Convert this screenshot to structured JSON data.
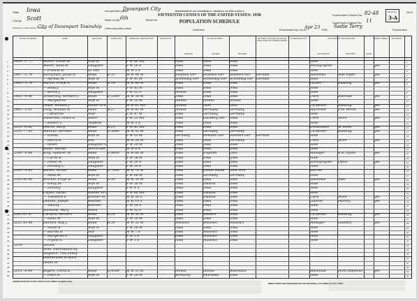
{
  "header": {
    "state_label": "State",
    "state": "Iowa",
    "county_label": "County",
    "county": "Scott",
    "township_label": "Township or other division of county",
    "township": "City of Davenport Township",
    "incorporated_label": "Incorporated place",
    "incorporated": "Davenport City",
    "ward_label": "Ward of city",
    "ward": "6th",
    "block_label": "Block No.",
    "unincorporated_label": "Unincorporated place",
    "institution_label": "Institution",
    "department": "DEPARTMENT OF COMMERCE—BUREAU OF THE CENSUS",
    "census_title": "FIFTEENTH CENSUS OF THE UNITED STATES: 1930",
    "schedule_title": "POPULATION SCHEDULE",
    "ed_label": "Enumeration District No.",
    "ed": "82-48",
    "supervisor_label": "Supervisor's District No.",
    "supervisor": "11",
    "enumerated_label": "Enumerated by me on",
    "enumerated_date": "Apr 23",
    "year": "1930",
    "enumerator": "Sadie Terry",
    "enumerator_label": "Enumerator",
    "sheet_label": "Sheet No.",
    "sheet": "3-A",
    "stamp": "2413"
  },
  "columns": [
    "PLACE OF ABODE",
    "NAME",
    "RELATION",
    "HOME DATA",
    "PERSONAL DESCRIPTION",
    "EDUCATION",
    "PLACE OF BIRTH",
    "MOTHER TONGUE (OR NATIVE LANGUAGE) OF FOREIGN BORN",
    "CITIZENSHIP, ETC.",
    "OCCUPATION AND INDUSTRY",
    "EMPLOYMENT",
    "VETERANS"
  ],
  "birth_subheaders": [
    "PERSON",
    "FATHER",
    "MOTHER"
  ],
  "occupation_subheaders": [
    "OCCUPATION",
    "INDUSTRY",
    "CODE"
  ],
  "rows": [
    {
      "abode": "2409 71 77",
      "name": "Moore, Lottie M.",
      "rel": "Wife H",
      "home": "",
      "desc": "F W 48 Wd",
      "birth": "Iowa",
      "father": "Iowa",
      "mother": "Iowa",
      "tongue": "",
      "occ": "none",
      "ind": "",
      "emp": ""
    },
    {
      "abode": "",
      "name": "Moore, Edna B.",
      "rel": "Daughter",
      "home": "",
      "desc": "F W 26 S",
      "birth": "Iowa",
      "father": "Iowa",
      "mother": "Iowa",
      "tongue": "",
      "occ": "Stenographer",
      "ind": "",
      "emp": "yes"
    },
    {
      "abode": "",
      "name": "— Francis W.",
      "rel": "Gr Son",
      "home": "",
      "desc": "M W 5 S",
      "birth": "Iowa",
      "father": "Iowa",
      "mother": "Iowa",
      "tongue": "",
      "occ": "none",
      "ind": "",
      "emp": ""
    },
    {
      "abode": "2407 72 78",
      "name": "Hardyman, Julius H.",
      "rel": "Head",
      "home": "R 15",
      "desc": "M W 44 M",
      "birth": "Holstein Ger",
      "father": "Holstein Ger",
      "mother": "Holstein Ger",
      "tongue": "German",
      "occ": "Salesman",
      "ind": "Wall Paper",
      "emp": "yes"
    },
    {
      "abode": "",
      "name": "— Alfreda M.",
      "rel": "Wife H",
      "home": "",
      "desc": "F W 41 M",
      "birth": "Schleswig Ger",
      "father": "Schleswig Ger",
      "mother": "Schleswig Ger",
      "tongue": "German",
      "occ": "none",
      "ind": "",
      "emp": ""
    },
    {
      "abode": "2405 73 79",
      "name": "Martin, Frank A.",
      "rel": "Head",
      "home": "R 14",
      "desc": "M W 48 M",
      "birth": "Iowa",
      "father": "Iowa",
      "mother": "Iowa",
      "tongue": "",
      "occ": "Painter",
      "ind": "Building",
      "emp": "yes"
    },
    {
      "abode": "",
      "name": "— Edna J.",
      "rel": "Wife H",
      "home": "",
      "desc": "F W 45 M",
      "birth": "Iowa",
      "father": "Iowa",
      "mother": "Iowa",
      "tongue": "",
      "occ": "none",
      "ind": "",
      "emp": ""
    },
    {
      "abode": "",
      "name": "— Bertie J.",
      "rel": "Daughter",
      "home": "",
      "desc": "F W 12 S",
      "birth": "Illinois",
      "father": "Iowa",
      "mother": "Iowa",
      "tongue": "",
      "occ": "none",
      "ind": "",
      "emp": ""
    },
    {
      "abode": "2403 74 80",
      "name": "Armstrong, Herbert C.",
      "rel": "Head",
      "home": "O 2500",
      "desc": "M W 38 M",
      "birth": "Iowa",
      "father": "Iowa",
      "mother": "Iowa",
      "tongue": "",
      "occ": "Clerk",
      "ind": "Railroad",
      "emp": "yes"
    },
    {
      "abode": "",
      "name": "— Marguerite",
      "rel": "Wife H",
      "home": "",
      "desc": "F W 35 M",
      "birth": "Illinois",
      "father": "Illinois",
      "mother": "Illinois",
      "tongue": "",
      "occ": "none",
      "ind": "",
      "emp": ""
    },
    {
      "abode": "",
      "name": "Pease, William J.",
      "rel": "Father-in-law",
      "home": "",
      "desc": "M W 61 Wd",
      "birth": "Illinois",
      "father": "Ohio",
      "mother": "Ohio",
      "tongue": "",
      "occ": "Carpenter",
      "ind": "Building",
      "emp": "yes"
    },
    {
      "abode": "2401 75 81",
      "name": "Long, William W.",
      "rel": "Head",
      "home": "R 27",
      "desc": "M W 45 M",
      "birth": "Illinois",
      "father": "Germany",
      "mother": "Germany",
      "tongue": "",
      "occ": "Machinist",
      "ind": "Iron Works",
      "emp": "yes"
    },
    {
      "abode": "",
      "name": "— Catherine",
      "rel": "Wife",
      "home": "",
      "desc": "F W 47 M",
      "birth": "Iowa",
      "father": "Germany",
      "mother": "Germany",
      "tongue": "",
      "occ": "none",
      "ind": "",
      "emp": ""
    },
    {
      "abode": "",
      "name": "Fulkerson, Grace E.",
      "rel": "Sister",
      "home": "",
      "desc": "F W 25 Wd",
      "birth": "Iowa",
      "father": "Lutzberg Ger",
      "mother": "Iowa",
      "tongue": "",
      "occ": "Clerk",
      "ind": "Store",
      "emp": "yes"
    },
    {
      "abode": "",
      "name": "— Robert C.",
      "rel": "Nephew",
      "home": "",
      "desc": "M W 5 S",
      "birth": "Iowa",
      "father": "Iowa",
      "mother": "Iowa",
      "tongue": "",
      "occ": "none",
      "ind": "",
      "emp": ""
    },
    {
      "abode": "2315 76 82",
      "name": "Pearce, Mary",
      "rel": "Head",
      "home": "R 25",
      "desc": "F W 42 Wd",
      "birth": "Iowa",
      "father": "Iowa",
      "mother": "Iowa",
      "tongue": "",
      "occ": "Dressmaker",
      "ind": "At home",
      "emp": "yes"
    },
    {
      "abode": "2311 77 83",
      "name": "Mathias, Herman",
      "rel": "Head",
      "home": "O 5000",
      "desc": "M W 52 M",
      "birth": "Iowa",
      "father": "Germany",
      "mother": "Germany",
      "tongue": "",
      "occ": "Carpenter",
      "ind": "Building",
      "emp": "yes"
    },
    {
      "abode": "",
      "name": "— Emma",
      "rel": "Wife H",
      "home": "",
      "desc": "F W 53 M",
      "birth": "Germany",
      "father": "Holstein Ger",
      "mother": "Holstein Ger",
      "tongue": "German",
      "occ": "none",
      "ind": "",
      "emp": ""
    },
    {
      "abode": "",
      "name": "— Harry H.",
      "rel": "Son",
      "home": "",
      "desc": "M W 24 M",
      "birth": "Iowa",
      "father": "Iowa",
      "mother": "Germany",
      "tongue": "",
      "occ": "Clerk",
      "ind": "Store",
      "emp": "yes"
    },
    {
      "abode": "",
      "name": "— Helen",
      "rel": "Daughter-in-law",
      "home": "",
      "desc": "F W 20 M",
      "birth": "Iowa",
      "father": "Iowa",
      "mother": "Iowa",
      "tongue": "",
      "occ": "none",
      "ind": "",
      "emp": ""
    },
    {
      "abode": "",
      "name": "Roald, Harold",
      "rel": "Son-in-law",
      "home": "",
      "desc": "M W 8 S",
      "birth": "Iowa",
      "father": "Iowa",
      "mother": "Iowa",
      "tongue": "",
      "occ": "none",
      "ind": "",
      "emp": ""
    },
    {
      "abode": "2309 78 84",
      "name": "King, Spencer M.",
      "rel": "Head",
      "home": "O 8000",
      "desc": "M W 66 M",
      "birth": "Iowa",
      "father": "England",
      "mother": "Ohio",
      "tongue": "",
      "occ": "Manager",
      "ind": "R.R. Office",
      "emp": "yes"
    },
    {
      "abode": "",
      "name": "— Carrie E.",
      "rel": "Wife H",
      "home": "",
      "desc": "F W 58 M",
      "birth": "Iowa",
      "father": "Iowa",
      "mother": "Iowa",
      "tongue": "",
      "occ": "none",
      "ind": "",
      "emp": ""
    },
    {
      "abode": "",
      "name": "— Nellie M.",
      "rel": "Daughter",
      "home": "",
      "desc": "F W 29 S",
      "birth": "Iowa",
      "father": "Iowa",
      "mother": "Iowa",
      "tongue": "",
      "occ": "Stenographer",
      "ind": "Office",
      "emp": "yes"
    },
    {
      "abode": "",
      "name": "— Dorothy L.",
      "rel": "Daughter",
      "home": "",
      "desc": "F W 20 S",
      "birth": "Iowa",
      "father": "Iowa",
      "mother": "Iowa",
      "tongue": "",
      "occ": "none",
      "ind": "",
      "emp": ""
    },
    {
      "abode": "2305 79 85",
      "name": "Barber, Arthur",
      "rel": "Head",
      "home": "O 7000",
      "desc": "M W 70 M",
      "birth": "Iowa",
      "father": "Rhode Island",
      "mother": "New York",
      "tongue": "",
      "occ": "Retired",
      "ind": "",
      "emp": ""
    },
    {
      "abode": "",
      "name": "— Anna M.",
      "rel": "Wife H",
      "home": "",
      "desc": "F W 66 M",
      "birth": "Iowa",
      "father": "Germany",
      "mother": "Germany",
      "tongue": "",
      "occ": "none",
      "ind": "",
      "emp": ""
    },
    {
      "abode": "2303 80 86",
      "name": "Brocker, Floyd B.",
      "rel": "Head",
      "home": "R 50",
      "desc": "M W 30 M",
      "birth": "Iowa",
      "father": "Iowa",
      "mother": "Iowa",
      "tongue": "",
      "occ": "Salesman",
      "ind": "Auto",
      "emp": "yes"
    },
    {
      "abode": "",
      "name": "— Emily M.",
      "rel": "Wife H",
      "home": "",
      "desc": "F W 28 M",
      "birth": "Iowa",
      "father": "Indiana",
      "mother": "Iowa",
      "tongue": "",
      "occ": "none",
      "ind": "",
      "emp": ""
    },
    {
      "abode": "",
      "name": "— Dorothy",
      "rel": "Daughter",
      "home": "",
      "desc": "F W 4 S",
      "birth": "Iowa",
      "father": "Iowa",
      "mother": "Iowa",
      "tongue": "",
      "occ": "none",
      "ind": "",
      "emp": ""
    },
    {
      "abode": "",
      "name": "Coffelt, Sarah",
      "rel": "Mother-in-law",
      "home": "",
      "desc": "F W 60 Wd",
      "birth": "Iowa",
      "father": "Indiana",
      "mother": "Iowa",
      "tongue": "",
      "occ": "none",
      "ind": "",
      "emp": ""
    },
    {
      "abode": "",
      "name": "— Theodore F.",
      "rel": "Brother-in-law",
      "home": "",
      "desc": "M W 30 S",
      "birth": "Iowa",
      "father": "Indiana",
      "mother": "Iowa",
      "tongue": "",
      "occ": "Clerk",
      "ind": "Store",
      "emp": "yes"
    },
    {
      "abode": "",
      "name": "Dobson, Joseph",
      "rel": "Boarder",
      "home": "",
      "desc": "M W 19 S",
      "birth": "Iowa",
      "father": "Iowa",
      "mother": "Iowa",
      "tongue": "",
      "occ": "Laborer",
      "ind": "Factory",
      "emp": "yes"
    },
    {
      "abode": "",
      "name": "— Audrey",
      "rel": "Boarder",
      "home": "",
      "desc": "F W 16 S",
      "birth": "Iowa",
      "father": "Iowa",
      "mother": "Iowa",
      "tongue": "",
      "occ": "none",
      "ind": "",
      "emp": ""
    },
    {
      "abode": "",
      "name": "Simmons, Mary",
      "rel": "Niece",
      "home": "",
      "desc": "F W 12 S",
      "birth": "Iowa",
      "father": "Iowa",
      "mother": "Iowa",
      "tongue": "",
      "occ": "none",
      "ind": "",
      "emp": ""
    },
    {
      "abode": "2301 81 87",
      "name": "Carlston, Herbert",
      "rel": "Head",
      "home": "R 26",
      "desc": "M W 30 M",
      "birth": "Iowa",
      "father": "Sweden",
      "mother": "Iowa",
      "tongue": "",
      "occ": "Carpenter",
      "ind": "Building",
      "emp": "yes"
    },
    {
      "abode": "",
      "name": "— Edna M.",
      "rel": "Wife H",
      "home": "",
      "desc": "F W 30 M",
      "birth": "Iowa",
      "father": "Iowa",
      "mother": "Iowa",
      "tongue": "",
      "occ": "none",
      "ind": "",
      "emp": ""
    },
    {
      "abode": "2221 82 88",
      "name": "Hackett, Roy J.",
      "rel": "Head",
      "home": "R 30",
      "desc": "M W 32 M",
      "birth": "Missouri",
      "father": "Missouri",
      "mother": "Missouri",
      "tongue": "",
      "occ": "Manager",
      "ind": "Laundry",
      "emp": "yes"
    },
    {
      "abode": "",
      "name": "— Sarah E.",
      "rel": "Wife H",
      "home": "",
      "desc": "F W 30 M",
      "birth": "Iowa",
      "father": "Iowa",
      "mother": "Iowa",
      "tongue": "",
      "occ": "none",
      "ind": "",
      "emp": ""
    },
    {
      "abode": "",
      "name": "— Harold D.",
      "rel": "Son",
      "home": "",
      "desc": "M W 7 S",
      "birth": "Iowa",
      "father": "Missouri",
      "mother": "Iowa",
      "tongue": "",
      "occ": "none",
      "ind": "",
      "emp": ""
    },
    {
      "abode": "",
      "name": "— Margarita L.",
      "rel": "Daughter",
      "home": "",
      "desc": "F W 5 S",
      "birth": "Iowa",
      "father": "Missouri",
      "mother": "Iowa",
      "tongue": "",
      "occ": "none",
      "ind": "",
      "emp": ""
    },
    {
      "abode": "",
      "name": "— Phyllis A.",
      "rel": "Daughter",
      "home": "",
      "desc": "F W 3 S",
      "birth": "Iowa",
      "father": "Missouri",
      "mother": "Iowa",
      "tongue": "",
      "occ": "none",
      "ind": "",
      "emp": ""
    },
    {
      "abode": "2219",
      "name": "Vacant",
      "rel": "",
      "home": "",
      "desc": "",
      "birth": "",
      "father": "",
      "mother": "",
      "tongue": "",
      "occ": "",
      "ind": "",
      "emp": ""
    },
    {
      "abode": "",
      "name": "Note. Information by",
      "rel": "",
      "home": "",
      "desc": "",
      "birth": "",
      "father": "",
      "mother": "",
      "tongue": "",
      "occ": "",
      "ind": "",
      "emp": ""
    },
    {
      "abode": "",
      "name": "neighbor. This family",
      "rel": "",
      "home": "",
      "desc": "",
      "birth": "",
      "father": "",
      "mother": "",
      "tongue": "",
      "occ": "",
      "ind": "",
      "emp": ""
    },
    {
      "abode": "",
      "name": "enumerated at Rock",
      "rel": "",
      "home": "",
      "desc": "",
      "birth": "",
      "father": "",
      "mother": "",
      "tongue": "",
      "occ": "",
      "ind": "",
      "emp": ""
    },
    {
      "abode": "",
      "name": "Island Ill.",
      "rel": "",
      "home": "",
      "desc": "",
      "birth": "",
      "father": "",
      "mother": "",
      "tongue": "",
      "occ": "",
      "ind": "",
      "emp": ""
    },
    {
      "abode": "",
      "name": "",
      "rel": "",
      "home": "",
      "desc": "",
      "birth": "",
      "father": "",
      "mother": "",
      "tongue": "",
      "occ": "",
      "ind": "",
      "emp": ""
    },
    {
      "abode": "2213 78 89",
      "name": "Rogers, Curtis E.",
      "rel": "Head",
      "home": "O 4500",
      "desc": "M W 33 M",
      "birth": "Illinois",
      "father": "Illinois",
      "mother": "Wisconsin",
      "tongue": "",
      "occ": "Machinist",
      "ind": "Farm Implement",
      "emp": "yes"
    },
    {
      "abode": "",
      "name": "— Pearl H.",
      "rel": "Wife H",
      "home": "",
      "desc": "F W 28 M",
      "birth": "Kentucky",
      "father": "Nebraska",
      "mother": "Iowa",
      "tongue": "",
      "occ": "none",
      "ind": "",
      "emp": ""
    }
  ],
  "footer": {
    "left_note": "ABBREVIATIONS TO BE USED IN COLUMNS AS INDICATED",
    "right_note": "DIRECTIONS ARE REQUIRED ON THE REVERSE, COLUMNS AS FOLLOWS:"
  }
}
